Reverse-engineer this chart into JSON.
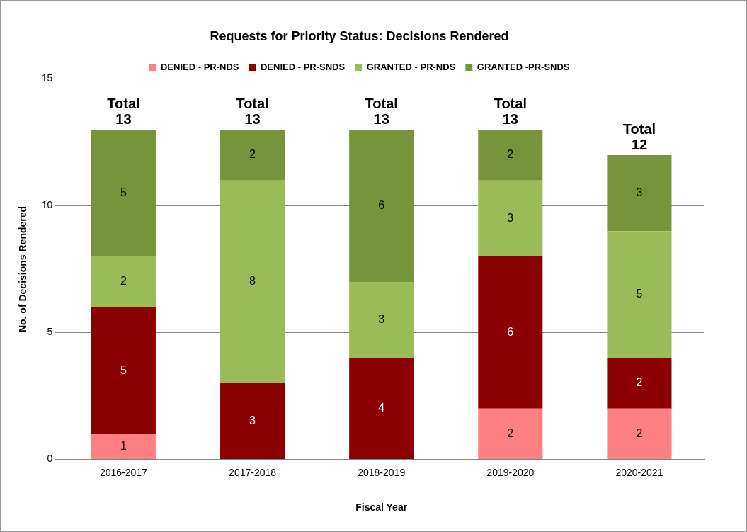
{
  "chart_data": {
    "type": "bar",
    "stacked": true,
    "title": "Requests for Priority Status: Decisions Rendered",
    "xlabel": "Fiscal Year",
    "ylabel": "No. of Decisions Rendered",
    "categories": [
      "2016-2017",
      "2017-2018",
      "2018-2019",
      "2019-2020",
      "2020-2021"
    ],
    "series": [
      {
        "name": "DENIED - PR-NDS",
        "color": "#ff8080",
        "values": [
          1,
          0,
          0,
          2,
          2
        ],
        "value_labels": [
          "1",
          null,
          null,
          "2",
          "2"
        ]
      },
      {
        "name": "DENIED - PR-SNDS",
        "color": "#8b0000",
        "values": [
          5,
          3,
          4,
          6,
          2
        ],
        "value_labels": [
          "5",
          "3",
          "4",
          "6",
          "2"
        ]
      },
      {
        "name": "GRANTED - PR-NDS",
        "color": "#9bbb59",
        "values": [
          2,
          8,
          3,
          3,
          5
        ],
        "value_labels": [
          "2",
          "8",
          "3",
          "3",
          "5"
        ]
      },
      {
        "name": "GRANTED -PR-SNDS",
        "color": "#77933c",
        "values": [
          5,
          2,
          6,
          2,
          3
        ],
        "value_labels": [
          "5",
          "2",
          "6",
          "2",
          "3"
        ]
      }
    ],
    "totals": [
      "Total 13",
      "Total 13",
      "Total 13",
      "Total 13",
      "Total 12"
    ],
    "ylim": [
      0,
      15
    ],
    "yticks": [
      0,
      5,
      10,
      15
    ],
    "grid": "y",
    "legend": "top"
  }
}
